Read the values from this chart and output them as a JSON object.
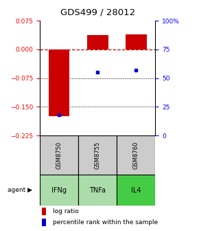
{
  "title": "GDS499 / 28012",
  "samples": [
    "GSM8750",
    "GSM8755",
    "GSM8760"
  ],
  "agents": [
    "IFNg",
    "TNFa",
    "IL4"
  ],
  "log_ratios": [
    -0.175,
    0.038,
    0.04
  ],
  "percentile_ranks": [
    18,
    55,
    57
  ],
  "ylim_left": [
    -0.225,
    0.075
  ],
  "ylim_right": [
    0,
    100
  ],
  "yticks_left": [
    0.075,
    0,
    -0.075,
    -0.15,
    -0.225
  ],
  "yticks_right": [
    100,
    75,
    50,
    25,
    0
  ],
  "bar_color": "#cc0000",
  "percentile_color": "#0000cc",
  "zero_line_color": "#cc0000",
  "agent_bg_colors": [
    "#aaddaa",
    "#aaddaa",
    "#44cc44"
  ],
  "sample_bg_color": "#cccccc",
  "bar_width": 0.55,
  "title_fontsize": 9.5,
  "tick_fontsize": 6.5,
  "label_fontsize": 7,
  "legend_fontsize": 6.5
}
